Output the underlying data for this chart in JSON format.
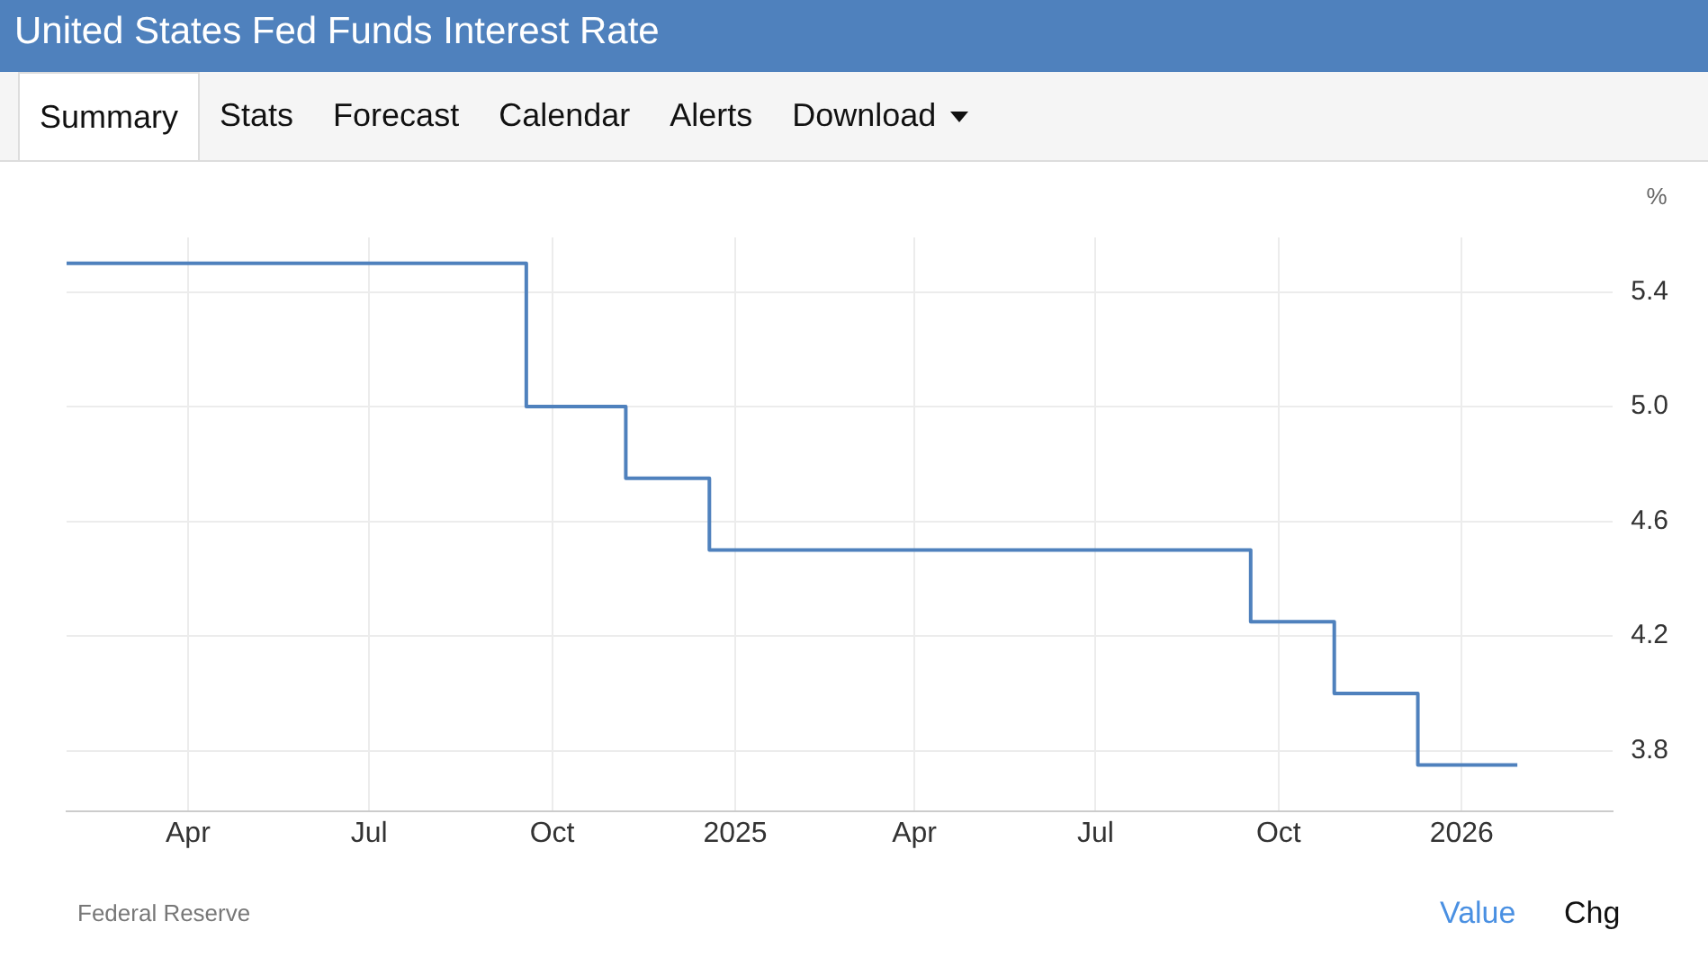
{
  "chart_data": {
    "type": "step",
    "title": "United States Fed Funds Interest Rate",
    "ylabel": "%",
    "x": [
      "2024-01-31",
      "2024-09-18",
      "2024-11-07",
      "2024-12-19",
      "2025-09-17",
      "2025-10-29",
      "2025-12-10",
      "2026-01-29"
    ],
    "series": [
      {
        "color": "#4f81bd",
        "values": [
          5.5,
          5.0,
          4.75,
          4.5,
          4.25,
          4.0,
          3.75,
          3.75
        ]
      }
    ],
    "xlim": [
      "2024-01-31",
      "2026-03-18"
    ],
    "xticks": [
      {
        "value": "2024-04-01",
        "label": "Apr"
      },
      {
        "value": "2024-07-01",
        "label": "Jul"
      },
      {
        "value": "2024-10-01",
        "label": "Oct"
      },
      {
        "value": "2025-01-01",
        "label": "2025"
      },
      {
        "value": "2025-04-01",
        "label": "Apr"
      },
      {
        "value": "2025-07-01",
        "label": "Jul"
      },
      {
        "value": "2025-10-01",
        "label": "Oct"
      },
      {
        "value": "2026-01-01",
        "label": "2026"
      }
    ],
    "ylim": [
      3.59,
      5.59
    ],
    "yticks": [
      {
        "value": 3.8,
        "label": "3.8"
      },
      {
        "value": 4.2,
        "label": "4.2"
      },
      {
        "value": 4.6,
        "label": "4.6"
      },
      {
        "value": 5.0,
        "label": "5.0"
      },
      {
        "value": 5.4,
        "label": "5.4"
      }
    ],
    "grid": true,
    "legend": false,
    "marker": "none",
    "line_style": "solid",
    "annotations": [
      "Summary",
      "Stats",
      "Forecast",
      "Calendar",
      "Alerts",
      "Download",
      "Federal Reserve",
      "Value",
      "Chg"
    ]
  }
}
